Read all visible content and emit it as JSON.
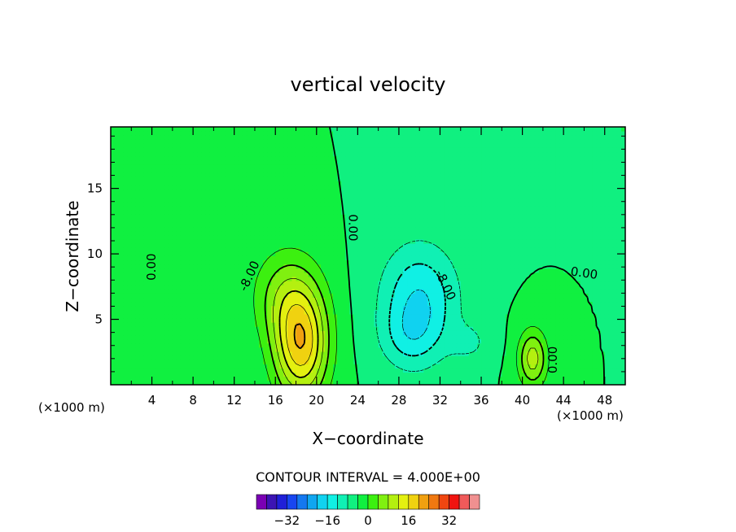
{
  "chart_data": {
    "type": "contour",
    "title": "vertical velocity",
    "xlabel": "X−coordinate",
    "ylabel": "Z−coordinate",
    "x_unit_left": "(×1000 m)",
    "x_unit_right": "(×1000 m)",
    "xlim": [
      0,
      50
    ],
    "ylim": [
      0,
      19.7
    ],
    "xticks": [
      4,
      8,
      12,
      16,
      20,
      24,
      28,
      32,
      36,
      40,
      44,
      48
    ],
    "xtick_labels": [
      "4",
      "8",
      "12",
      "16",
      "20",
      "24",
      "28",
      "32",
      "36",
      "40",
      "44",
      "48"
    ],
    "yticks": [
      5,
      10,
      15
    ],
    "ytick_labels": [
      "5",
      "10",
      "15"
    ],
    "contour_interval_text": "CONTOUR INTERVAL = 4.000E+00",
    "contour_interval": 4.0,
    "contour_labels": [
      {
        "text": "0.00",
        "x": 4.0,
        "y": 9.0,
        "rot": -90
      },
      {
        "text": "0.00",
        "x": 23.5,
        "y": 12.0,
        "rot": 90
      },
      {
        "text": "-8.00",
        "x": 13.5,
        "y": 8.3,
        "rot": -65
      },
      {
        "text": "-8.00",
        "x": 32.5,
        "y": 7.6,
        "rot": 65
      },
      {
        "text": "0.00",
        "x": 46.0,
        "y": 8.5,
        "rot": 8
      },
      {
        "text": "0.00",
        "x": 43.0,
        "y": 1.9,
        "rot": -90
      }
    ],
    "features": [
      {
        "kind": "updraft",
        "x": 18.5,
        "z": 3.0,
        "sx": 2.6,
        "sz": 4.2,
        "amp": 22
      },
      {
        "kind": "updraft",
        "x": 17.0,
        "z": 6.8,
        "sx": 3.2,
        "sz": 3.6,
        "amp": 9
      },
      {
        "kind": "updraft",
        "x": 41.0,
        "z": 2.0,
        "sx": 1.4,
        "sz": 2.2,
        "amp": 14
      },
      {
        "kind": "updraft",
        "x": 6.0,
        "z": 12.0,
        "sx": 4.0,
        "sz": 5.0,
        "amp": 2
      },
      {
        "kind": "downdraft",
        "x": 30.0,
        "z": 6.5,
        "sx": 3.8,
        "sz": 4.3,
        "amp": -12
      },
      {
        "kind": "downdraft",
        "x": 29.0,
        "z": 3.5,
        "sx": 2.8,
        "sz": 2.4,
        "amp": -5
      },
      {
        "kind": "downdraft",
        "x": 35.0,
        "z": 3.2,
        "sx": 2.0,
        "sz": 1.5,
        "amp": -4
      }
    ],
    "colorbar": {
      "min": -40,
      "max": 40,
      "step": 4,
      "tick_values": [
        -32,
        -16,
        0,
        16,
        32
      ],
      "tick_labels": [
        "−32",
        "−16",
        "0",
        "16",
        "32"
      ],
      "colors": [
        "#7a00b4",
        "#3c14b4",
        "#2020d8",
        "#1846f0",
        "#1478f0",
        "#10a6f0",
        "#10d2f0",
        "#10f0e4",
        "#10f0b4",
        "#10f080",
        "#10f040",
        "#3cf010",
        "#80f010",
        "#b4f010",
        "#e4f010",
        "#f0d210",
        "#f0a010",
        "#f07810",
        "#f04610",
        "#f01410",
        "#f05a5a",
        "#f09090"
      ]
    }
  }
}
